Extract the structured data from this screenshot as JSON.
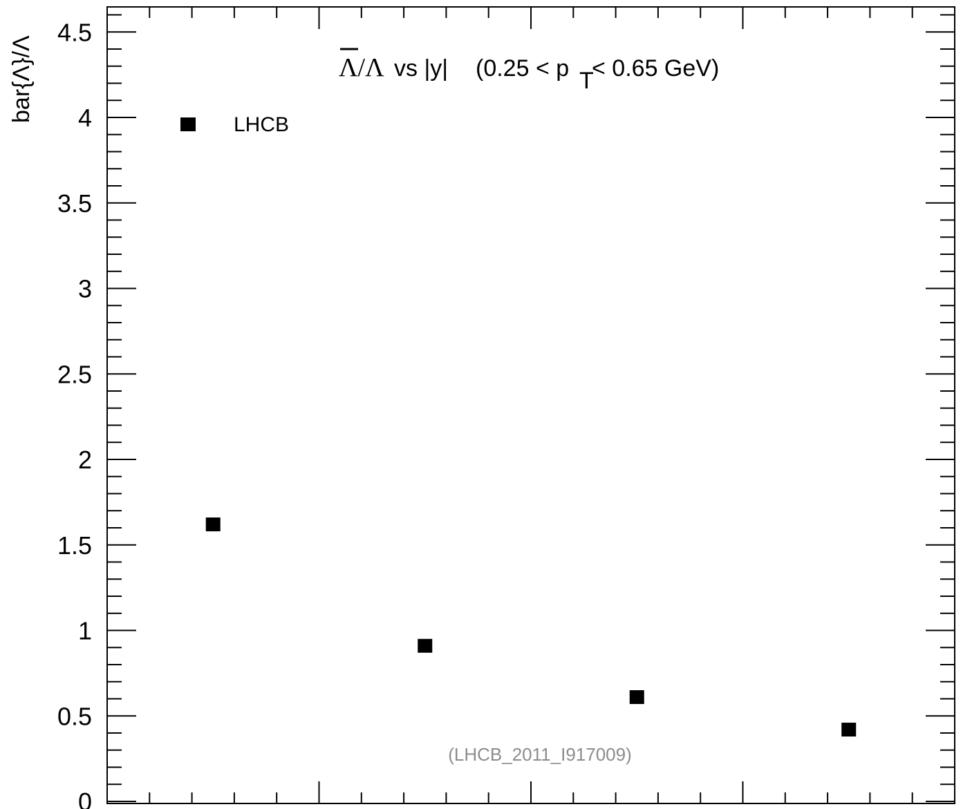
{
  "chart_data": {
    "type": "scatter",
    "title": {
      "ratio_symbol": "Λ/Λ",
      "vs_text": " vs |y|",
      "range_prefix": "(0.25 < p",
      "range_subscript": "T",
      "range_suffix": " < 0.65 GeV)"
    },
    "ylabel": "bar{Λ}/Λ",
    "xlabel": "",
    "ylim": [
      0,
      4.6
    ],
    "xlim": [
      0,
      2.0
    ],
    "yticks": [
      {
        "value": 0,
        "label": "0"
      },
      {
        "value": 0.5,
        "label": "0.5"
      },
      {
        "value": 1,
        "label": "1"
      },
      {
        "value": 1.5,
        "label": "1.5"
      },
      {
        "value": 2,
        "label": "2"
      },
      {
        "value": 2.5,
        "label": "2.5"
      },
      {
        "value": 3,
        "label": "3"
      },
      {
        "value": 3.5,
        "label": "3.5"
      },
      {
        "value": 4,
        "label": "4"
      },
      {
        "value": 4.5,
        "label": "4.5"
      }
    ],
    "series": [
      {
        "name": "LHCB",
        "color": "#000000",
        "marker": "square",
        "x": [
          0.25,
          0.75,
          1.25,
          1.75
        ],
        "y": [
          1.62,
          0.91,
          0.61,
          0.42
        ]
      }
    ],
    "annotation": "(LHCB_2011_I917009)",
    "legend_position": "top-left",
    "grid": false
  }
}
